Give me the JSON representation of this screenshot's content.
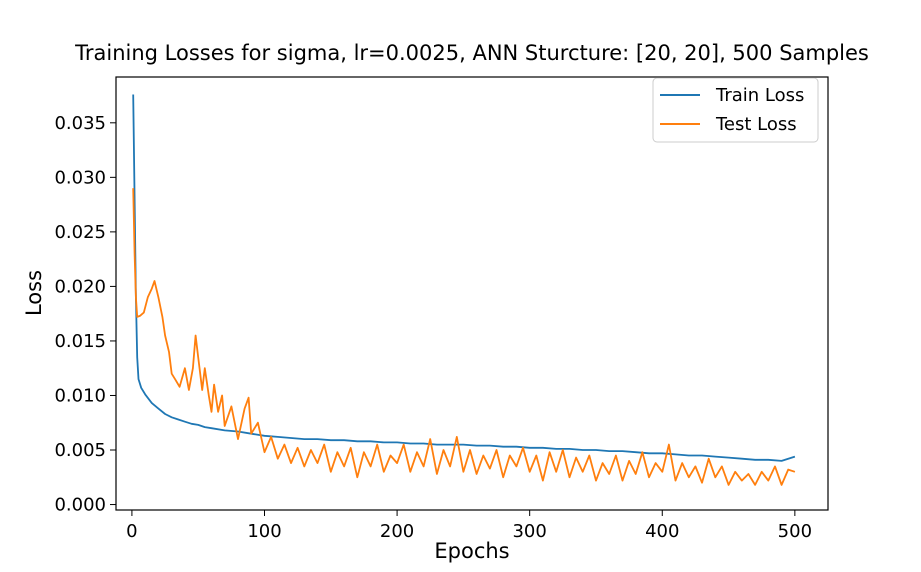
{
  "chart_data": {
    "type": "line",
    "title": "Training Losses for sigma, lr=0.0025, ANN Sturcture: [20, 20], 500 Samples",
    "xlabel": "Epochs",
    "ylabel": "Loss",
    "xlim": [
      -12,
      525
    ],
    "ylim": [
      -0.0005,
      0.0392
    ],
    "xticks": [
      0,
      100,
      200,
      300,
      400,
      500
    ],
    "xtick_labels": [
      "0",
      "100",
      "200",
      "300",
      "400",
      "500"
    ],
    "yticks": [
      0.0,
      0.005,
      0.01,
      0.015,
      0.02,
      0.025,
      0.03,
      0.035
    ],
    "ytick_labels": [
      "0.000",
      "0.005",
      "0.010",
      "0.015",
      "0.020",
      "0.025",
      "0.030",
      "0.035"
    ],
    "grid": false,
    "legend_position": "top-right",
    "series": [
      {
        "name": "Train Loss",
        "color": "#1f77b4",
        "points": [
          [
            1,
            0.0376
          ],
          [
            2,
            0.028
          ],
          [
            3,
            0.019
          ],
          [
            4,
            0.0135
          ],
          [
            5,
            0.0115
          ],
          [
            7,
            0.0107
          ],
          [
            10,
            0.0101
          ],
          [
            15,
            0.0093
          ],
          [
            20,
            0.0088
          ],
          [
            25,
            0.0083
          ],
          [
            30,
            0.008
          ],
          [
            35,
            0.0078
          ],
          [
            40,
            0.0076
          ],
          [
            45,
            0.0074
          ],
          [
            50,
            0.0073
          ],
          [
            55,
            0.0071
          ],
          [
            60,
            0.007
          ],
          [
            70,
            0.0068
          ],
          [
            80,
            0.0067
          ],
          [
            90,
            0.0065
          ],
          [
            100,
            0.0063
          ],
          [
            110,
            0.0062
          ],
          [
            120,
            0.0061
          ],
          [
            130,
            0.006
          ],
          [
            140,
            0.006
          ],
          [
            150,
            0.0059
          ],
          [
            160,
            0.0059
          ],
          [
            170,
            0.0058
          ],
          [
            180,
            0.0058
          ],
          [
            190,
            0.0057
          ],
          [
            200,
            0.0057
          ],
          [
            210,
            0.0056
          ],
          [
            220,
            0.0056
          ],
          [
            230,
            0.0055
          ],
          [
            240,
            0.0055
          ],
          [
            250,
            0.0055
          ],
          [
            260,
            0.0054
          ],
          [
            270,
            0.0054
          ],
          [
            280,
            0.0053
          ],
          [
            290,
            0.0053
          ],
          [
            300,
            0.0052
          ],
          [
            310,
            0.0052
          ],
          [
            320,
            0.0051
          ],
          [
            330,
            0.0051
          ],
          [
            340,
            0.005
          ],
          [
            350,
            0.005
          ],
          [
            360,
            0.0049
          ],
          [
            370,
            0.0049
          ],
          [
            380,
            0.0048
          ],
          [
            390,
            0.0047
          ],
          [
            400,
            0.0047
          ],
          [
            410,
            0.0046
          ],
          [
            420,
            0.0045
          ],
          [
            430,
            0.0045
          ],
          [
            440,
            0.0044
          ],
          [
            450,
            0.0043
          ],
          [
            460,
            0.0042
          ],
          [
            470,
            0.0041
          ],
          [
            480,
            0.0041
          ],
          [
            490,
            0.004
          ],
          [
            500,
            0.0044
          ]
        ]
      },
      {
        "name": "Test Loss",
        "color": "#ff7f0e",
        "points": [
          [
            1,
            0.029
          ],
          [
            2,
            0.023
          ],
          [
            3,
            0.019
          ],
          [
            4,
            0.0172
          ],
          [
            6,
            0.0173
          ],
          [
            9,
            0.0176
          ],
          [
            12,
            0.019
          ],
          [
            15,
            0.0198
          ],
          [
            17,
            0.0205
          ],
          [
            20,
            0.019
          ],
          [
            23,
            0.0172
          ],
          [
            25,
            0.0155
          ],
          [
            28,
            0.014
          ],
          [
            30,
            0.012
          ],
          [
            33,
            0.0114
          ],
          [
            36,
            0.0108
          ],
          [
            40,
            0.0125
          ],
          [
            43,
            0.0105
          ],
          [
            46,
            0.0125
          ],
          [
            48,
            0.0155
          ],
          [
            50,
            0.0135
          ],
          [
            53,
            0.0105
          ],
          [
            55,
            0.0125
          ],
          [
            58,
            0.01
          ],
          [
            60,
            0.0085
          ],
          [
            62,
            0.011
          ],
          [
            65,
            0.0085
          ],
          [
            68,
            0.01
          ],
          [
            70,
            0.0072
          ],
          [
            75,
            0.009
          ],
          [
            80,
            0.006
          ],
          [
            85,
            0.0088
          ],
          [
            88,
            0.0098
          ],
          [
            90,
            0.0065
          ],
          [
            95,
            0.0075
          ],
          [
            100,
            0.0048
          ],
          [
            105,
            0.0062
          ],
          [
            110,
            0.0042
          ],
          [
            115,
            0.0055
          ],
          [
            120,
            0.0038
          ],
          [
            125,
            0.0052
          ],
          [
            130,
            0.0035
          ],
          [
            135,
            0.005
          ],
          [
            140,
            0.0038
          ],
          [
            145,
            0.0055
          ],
          [
            150,
            0.003
          ],
          [
            155,
            0.0048
          ],
          [
            160,
            0.0035
          ],
          [
            165,
            0.0052
          ],
          [
            170,
            0.0025
          ],
          [
            175,
            0.0048
          ],
          [
            180,
            0.0035
          ],
          [
            185,
            0.0055
          ],
          [
            190,
            0.003
          ],
          [
            195,
            0.0045
          ],
          [
            200,
            0.0038
          ],
          [
            205,
            0.0055
          ],
          [
            210,
            0.003
          ],
          [
            215,
            0.0048
          ],
          [
            220,
            0.0035
          ],
          [
            225,
            0.006
          ],
          [
            230,
            0.0028
          ],
          [
            235,
            0.005
          ],
          [
            240,
            0.0035
          ],
          [
            245,
            0.0062
          ],
          [
            250,
            0.003
          ],
          [
            255,
            0.005
          ],
          [
            260,
            0.0028
          ],
          [
            265,
            0.0045
          ],
          [
            270,
            0.0033
          ],
          [
            275,
            0.005
          ],
          [
            280,
            0.0025
          ],
          [
            285,
            0.0045
          ],
          [
            290,
            0.0035
          ],
          [
            295,
            0.0052
          ],
          [
            300,
            0.003
          ],
          [
            305,
            0.0045
          ],
          [
            310,
            0.0022
          ],
          [
            315,
            0.0048
          ],
          [
            320,
            0.003
          ],
          [
            325,
            0.005
          ],
          [
            330,
            0.0025
          ],
          [
            335,
            0.0043
          ],
          [
            340,
            0.003
          ],
          [
            345,
            0.0045
          ],
          [
            350,
            0.0022
          ],
          [
            355,
            0.0038
          ],
          [
            360,
            0.0028
          ],
          [
            365,
            0.0045
          ],
          [
            370,
            0.0022
          ],
          [
            375,
            0.004
          ],
          [
            380,
            0.0028
          ],
          [
            385,
            0.0048
          ],
          [
            390,
            0.0025
          ],
          [
            395,
            0.0038
          ],
          [
            400,
            0.003
          ],
          [
            405,
            0.0055
          ],
          [
            410,
            0.0022
          ],
          [
            415,
            0.0038
          ],
          [
            420,
            0.0025
          ],
          [
            425,
            0.0035
          ],
          [
            430,
            0.002
          ],
          [
            435,
            0.0042
          ],
          [
            440,
            0.0025
          ],
          [
            445,
            0.0035
          ],
          [
            450,
            0.0018
          ],
          [
            455,
            0.003
          ],
          [
            460,
            0.0022
          ],
          [
            465,
            0.0028
          ],
          [
            470,
            0.0018
          ],
          [
            475,
            0.003
          ],
          [
            480,
            0.0022
          ],
          [
            485,
            0.0035
          ],
          [
            490,
            0.0018
          ],
          [
            495,
            0.0032
          ],
          [
            500,
            0.003
          ]
        ]
      }
    ]
  }
}
